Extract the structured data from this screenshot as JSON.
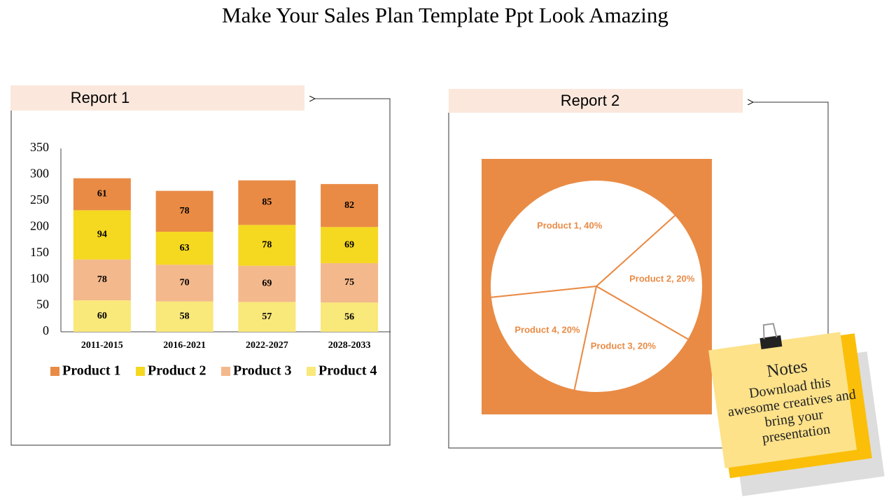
{
  "title": "Make Your Sales Plan Template Ppt Look Amazing",
  "chart_data": [
    {
      "type": "bar",
      "title": "Report 1",
      "stacked": true,
      "categories": [
        "2011-2015",
        "2016-2021",
        "2022-2027",
        "2028-2033"
      ],
      "series": [
        {
          "name": "Product 1",
          "color": "#e98b45",
          "values": [
            61,
            78,
            85,
            82
          ]
        },
        {
          "name": "Product 2",
          "color": "#f5d820",
          "values": [
            94,
            63,
            78,
            69
          ]
        },
        {
          "name": "Product 3",
          "color": "#f3b88c",
          "values": [
            78,
            70,
            69,
            75
          ]
        },
        {
          "name": "Product 4",
          "color": "#f9e87a",
          "values": [
            60,
            58,
            57,
            56
          ]
        }
      ],
      "ylim": [
        0,
        350
      ],
      "yticks": [
        0,
        50,
        100,
        150,
        200,
        250,
        300,
        350
      ],
      "grid": false,
      "legend": "bottom"
    },
    {
      "type": "pie",
      "title": "Report 2",
      "color": "#e98b45",
      "values": [
        40,
        20,
        20,
        20
      ],
      "value_labels": [
        "Product 1, 40%",
        "Product 2, 20%",
        "Product 3, 20%",
        "Product 4, 20%"
      ]
    }
  ],
  "notes": {
    "title": "Notes",
    "text": "Download this awesome creatives and bring your presentation"
  }
}
